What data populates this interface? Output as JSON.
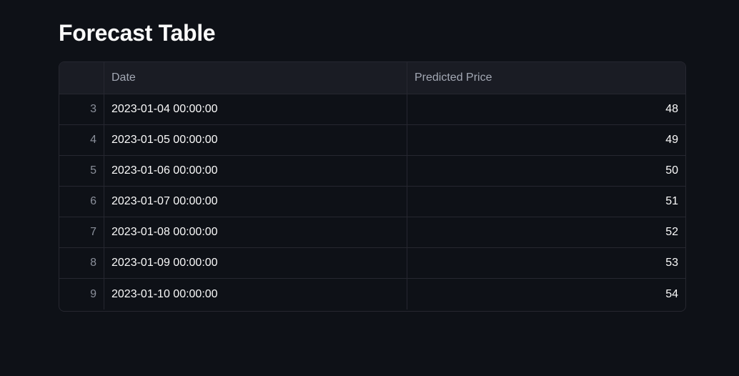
{
  "page": {
    "title": "Forecast Table"
  },
  "table": {
    "columns": [
      "",
      "Date",
      "Predicted Price"
    ],
    "rows": [
      {
        "index": "3",
        "date": "2023-01-04 00:00:00",
        "price": "48"
      },
      {
        "index": "4",
        "date": "2023-01-05 00:00:00",
        "price": "49"
      },
      {
        "index": "5",
        "date": "2023-01-06 00:00:00",
        "price": "50"
      },
      {
        "index": "6",
        "date": "2023-01-07 00:00:00",
        "price": "51"
      },
      {
        "index": "7",
        "date": "2023-01-08 00:00:00",
        "price": "52"
      },
      {
        "index": "8",
        "date": "2023-01-09 00:00:00",
        "price": "53"
      },
      {
        "index": "9",
        "date": "2023-01-10 00:00:00",
        "price": "54"
      }
    ]
  },
  "colors": {
    "background": "#0e1117",
    "header_bg": "#1a1c24",
    "border": "#262730",
    "text": "#fafafa",
    "muted_text": "#a3a8b4"
  }
}
